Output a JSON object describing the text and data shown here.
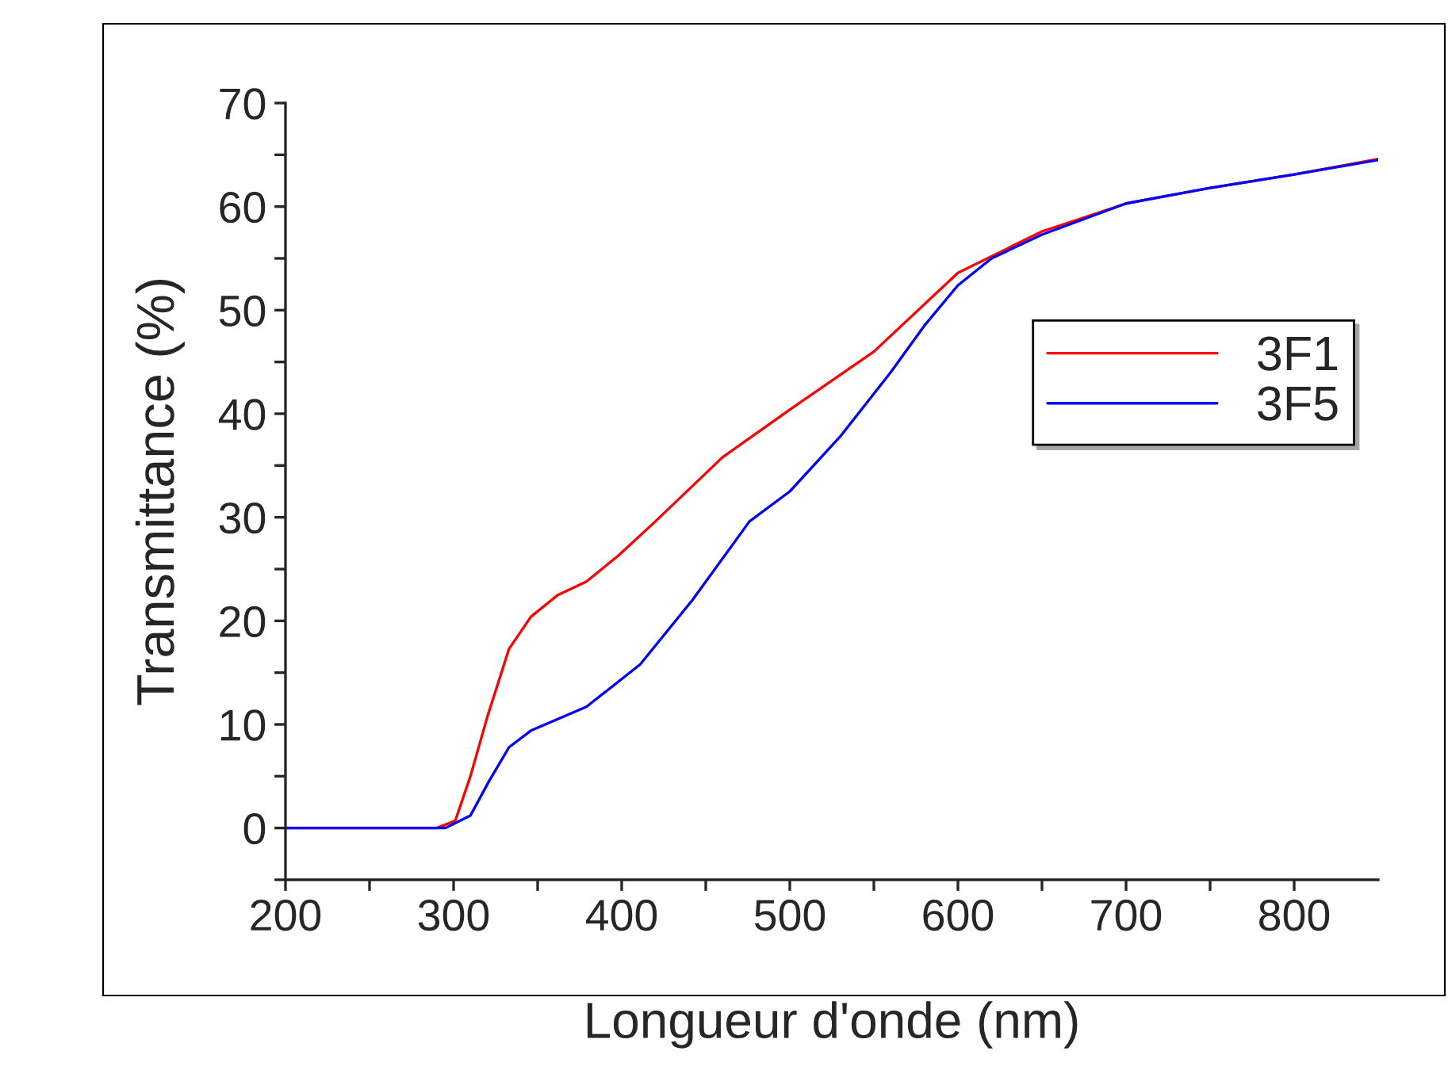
{
  "chart_data": {
    "type": "line",
    "xlabel": "Longueur d'onde (nm)",
    "ylabel": "Transmittance (%)",
    "xlim": [
      200,
      850
    ],
    "ylim": [
      -5,
      70
    ],
    "xticks": [
      200,
      {
        "value": 250,
        "label": null
      },
      300,
      {
        "value": 350,
        "label": null
      },
      400,
      {
        "value": 450,
        "label": null
      },
      500,
      {
        "value": 550,
        "label": null
      },
      600,
      {
        "value": 650,
        "label": null
      },
      700,
      {
        "value": 750,
        "label": null
      },
      800
    ],
    "yticks": [
      {
        "value": -5,
        "label": null
      },
      0,
      {
        "value": 5,
        "label": null
      },
      10,
      {
        "value": 15,
        "label": null
      },
      20,
      {
        "value": 25,
        "label": null
      },
      30,
      {
        "value": 35,
        "label": null
      },
      40,
      {
        "value": 45,
        "label": null
      },
      50,
      {
        "value": 55,
        "label": null
      },
      60,
      {
        "value": 65,
        "label": null
      },
      70
    ],
    "grid": false,
    "legend": "right",
    "marker": "none",
    "line_style": "solid",
    "series": [
      {
        "name": "3F1",
        "color": "#ff0000",
        "x": [
          200,
          250,
          290,
          301,
          310,
          320,
          333,
          346,
          362,
          379,
          398,
          420,
          460,
          500,
          550,
          600,
          650,
          700,
          750,
          800,
          850
        ],
        "values": [
          0,
          0,
          0,
          0.7,
          5,
          10.7,
          17.3,
          20.4,
          22.5,
          23.8,
          26.3,
          29.6,
          35.8,
          40.4,
          46,
          53.6,
          57.6,
          60.3,
          61.8,
          63.1,
          64.6
        ]
      },
      {
        "name": "3F5",
        "color": "#0000ff",
        "x": [
          200,
          250,
          295,
          310,
          321,
          333,
          346,
          379,
          411,
          442,
          476,
          500,
          530,
          560,
          580,
          600,
          620,
          650,
          700,
          750,
          800,
          850
        ],
        "values": [
          0,
          0,
          0,
          1.2,
          4.5,
          7.8,
          9.4,
          11.7,
          15.8,
          22,
          29.6,
          32.5,
          37.8,
          44,
          48.5,
          52.4,
          55,
          57.3,
          60.3,
          61.8,
          63.1,
          64.5
        ]
      }
    ]
  }
}
